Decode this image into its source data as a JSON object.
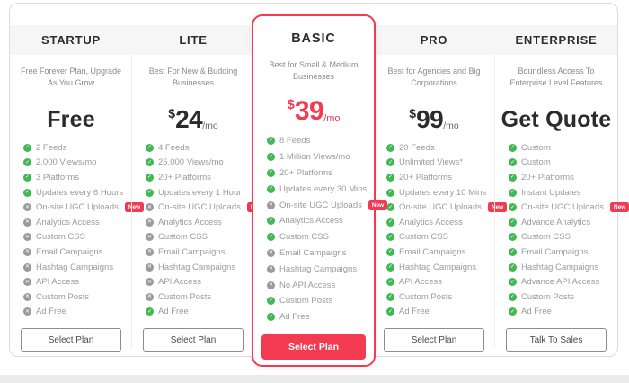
{
  "colors": {
    "accent": "#f23a51",
    "green": "#41b953",
    "gray_icon": "#9a9a9a",
    "header_bg": "#f6f6f6"
  },
  "icons": {
    "check": "✓",
    "cross": "✕"
  },
  "plans": [
    {
      "name": "STARTUP",
      "subtitle": "Free Forever Plan, Upgrade As You Grow",
      "price": {
        "kind": "text",
        "label": "Free"
      },
      "features": [
        {
          "label": "2 Feeds",
          "included": true
        },
        {
          "label": "2,000 Views/mo",
          "included": true
        },
        {
          "label": "3 Platforms",
          "included": true
        },
        {
          "label": "Updates every 6 Hours",
          "included": true
        },
        {
          "label": "On-site UGC Uploads",
          "included": false,
          "badge": "New"
        },
        {
          "label": "Analytics Access",
          "included": false
        },
        {
          "label": "Custom CSS",
          "included": false
        },
        {
          "label": "Email Campaigns",
          "included": false
        },
        {
          "label": "Hashtag Campaigns",
          "included": false
        },
        {
          "label": "API Access",
          "included": false
        },
        {
          "label": "Custom Posts",
          "included": false
        },
        {
          "label": "Ad Free",
          "included": false
        }
      ],
      "button": "Select Plan",
      "highlighted": false
    },
    {
      "name": "LITE",
      "subtitle": "Best For New & Budding Businesses",
      "price": {
        "kind": "money",
        "currency": "$",
        "amount": "24",
        "period": "/mo"
      },
      "features": [
        {
          "label": "4 Feeds",
          "included": true
        },
        {
          "label": "25,000 Views/mo",
          "included": true
        },
        {
          "label": "20+ Platforms",
          "included": true
        },
        {
          "label": "Updates every 1 Hour",
          "included": true
        },
        {
          "label": "On-site UGC Uploads",
          "included": false,
          "badge": "New"
        },
        {
          "label": "Analytics Access",
          "included": false
        },
        {
          "label": "Custom CSS",
          "included": false
        },
        {
          "label": "Email Campaigns",
          "included": false
        },
        {
          "label": "Hashtag Campaigns",
          "included": false
        },
        {
          "label": "API Access",
          "included": false
        },
        {
          "label": "Custom Posts",
          "included": false
        },
        {
          "label": "Ad Free",
          "included": true
        }
      ],
      "button": "Select Plan",
      "highlighted": false
    },
    {
      "name": "BASIC",
      "subtitle": "Best for Small & Medium Businesses",
      "price": {
        "kind": "money",
        "currency": "$",
        "amount": "39",
        "period": "/mo"
      },
      "features": [
        {
          "label": "8 Feeds",
          "included": true
        },
        {
          "label": "1 Million Views/mo",
          "included": true
        },
        {
          "label": "20+ Platforms",
          "included": true
        },
        {
          "label": "Updates every 30 Mins",
          "included": true
        },
        {
          "label": "On-site UGC Uploads",
          "included": false,
          "badge": "New"
        },
        {
          "label": "Analytics Access",
          "included": true
        },
        {
          "label": "Custom CSS",
          "included": true
        },
        {
          "label": "Email Campaigns",
          "included": false
        },
        {
          "label": "Hashtag Campaigns",
          "included": false
        },
        {
          "label": "No API Access",
          "included": false
        },
        {
          "label": "Custom Posts",
          "included": true
        },
        {
          "label": "Ad Free",
          "included": true
        }
      ],
      "button": "Select Plan",
      "highlighted": true
    },
    {
      "name": "PRO",
      "subtitle": "Best for Agencies and Big Corporations",
      "price": {
        "kind": "money",
        "currency": "$",
        "amount": "99",
        "period": "/mo"
      },
      "features": [
        {
          "label": "20 Feeds",
          "included": true
        },
        {
          "label": "Unlimited Views*",
          "included": true
        },
        {
          "label": "20+ Platforms",
          "included": true
        },
        {
          "label": "Updates every 10 Mins",
          "included": true
        },
        {
          "label": "On-site UGC Uploads",
          "included": true,
          "badge": "New"
        },
        {
          "label": "Analytics Access",
          "included": true
        },
        {
          "label": "Custom CSS",
          "included": true
        },
        {
          "label": "Email Campaigns",
          "included": true
        },
        {
          "label": "Hashtag Campaigns",
          "included": true
        },
        {
          "label": "API Access",
          "included": true
        },
        {
          "label": "Custom Posts",
          "included": true
        },
        {
          "label": "Ad Free",
          "included": true
        }
      ],
      "button": "Select Plan",
      "highlighted": false
    },
    {
      "name": "ENTERPRISE",
      "subtitle": "Boundless Access To Enterprise Level Features",
      "price": {
        "kind": "text",
        "label": "Get Quote"
      },
      "features": [
        {
          "label": "Custom",
          "included": true
        },
        {
          "label": "Custom",
          "included": true
        },
        {
          "label": "20+ Platforms",
          "included": true
        },
        {
          "label": "Instant Updates",
          "included": true
        },
        {
          "label": "On-site UGC Uploads",
          "included": true,
          "badge": "New"
        },
        {
          "label": "Advance Analytics",
          "included": true
        },
        {
          "label": "Custom CSS",
          "included": true
        },
        {
          "label": "Email Campaigns",
          "included": true
        },
        {
          "label": "Hashtag Campaigns",
          "included": true
        },
        {
          "label": "Advance API Access",
          "included": true
        },
        {
          "label": "Custom Posts",
          "included": true
        },
        {
          "label": "Ad Free",
          "included": true
        }
      ],
      "button": "Talk To Sales",
      "highlighted": false
    }
  ]
}
